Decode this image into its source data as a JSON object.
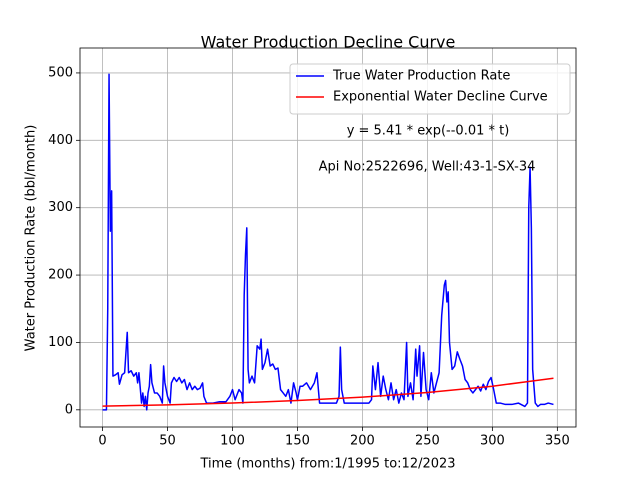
{
  "chart_data": {
    "type": "line",
    "title": "Water Production Decline Curve",
    "xlabel": "Time (months) from:1/1995 to:12/2023",
    "ylabel": "Water Production Rate (bbl/month)",
    "annotations": [
      "y = 5.41 * exp(--0.01 * t)",
      "Api No:2522696, Well:43-1-SX-34"
    ],
    "xlim": [
      -17.35,
      364.35
    ],
    "ylim": [
      -25.5,
      537
    ],
    "xticks": [
      0,
      50,
      100,
      150,
      200,
      250,
      300,
      350
    ],
    "yticks": [
      0,
      100,
      200,
      300,
      400,
      500
    ],
    "grid": true,
    "legend": "upper right",
    "series": [
      {
        "name": "True Water Production Rate",
        "color": "#0000ff",
        "x": [
          0,
          3,
          4,
          5,
          6,
          7,
          8,
          10,
          12,
          13,
          15,
          17,
          19,
          20,
          22,
          24,
          26,
          27,
          28,
          30,
          31,
          32,
          33,
          34,
          35,
          36,
          37,
          38,
          40,
          42,
          44,
          46,
          47,
          48,
          50,
          52,
          53,
          55,
          57,
          59,
          61,
          63,
          65,
          67,
          69,
          71,
          73,
          75,
          77,
          78,
          80,
          85,
          90,
          95,
          98,
          100,
          102,
          105,
          107,
          108,
          109,
          110,
          111,
          112,
          113,
          115,
          117,
          119,
          121,
          122,
          123,
          125,
          127,
          129,
          131,
          133,
          135,
          137,
          139,
          141,
          143,
          145,
          147,
          149,
          150,
          152,
          154,
          157,
          160,
          163,
          165,
          167,
          170,
          175,
          180,
          182,
          183,
          184,
          186,
          190,
          195,
          200,
          205,
          207,
          208,
          210,
          212,
          214,
          216,
          218,
          220,
          222,
          224,
          226,
          228,
          230,
          232,
          234,
          235,
          237,
          239,
          241,
          242,
          244,
          245,
          247,
          249,
          251,
          253,
          255,
          257,
          259,
          261,
          263,
          264,
          265,
          266,
          267,
          269,
          271,
          273,
          275,
          277,
          279,
          281,
          283,
          285,
          287,
          289,
          291,
          293,
          295,
          297,
          299,
          301,
          303,
          306,
          310,
          315,
          320,
          325,
          327,
          328,
          329,
          330,
          331,
          333,
          335,
          337,
          340,
          343,
          347
        ],
        "values": [
          0,
          0,
          150,
          498,
          265,
          325,
          50,
          52,
          55,
          38,
          52,
          55,
          115,
          55,
          58,
          50,
          55,
          40,
          55,
          10,
          25,
          5,
          20,
          0,
          25,
          35,
          67,
          40,
          25,
          25,
          20,
          10,
          65,
          40,
          20,
          10,
          40,
          48,
          42,
          48,
          40,
          45,
          30,
          40,
          30,
          35,
          30,
          32,
          40,
          20,
          10,
          10,
          12,
          12,
          20,
          30,
          15,
          30,
          25,
          10,
          170,
          230,
          270,
          60,
          40,
          50,
          40,
          95,
          90,
          105,
          60,
          70,
          90,
          65,
          68,
          60,
          62,
          30,
          25,
          20,
          30,
          10,
          40,
          25,
          15,
          35,
          35,
          40,
          30,
          40,
          55,
          10,
          10,
          10,
          10,
          20,
          93,
          30,
          10,
          10,
          10,
          10,
          10,
          15,
          65,
          30,
          70,
          20,
          50,
          30,
          15,
          40,
          15,
          30,
          10,
          25,
          15,
          100,
          20,
          40,
          15,
          90,
          50,
          95,
          20,
          85,
          30,
          15,
          55,
          25,
          40,
          55,
          140,
          185,
          192,
          160,
          175,
          100,
          60,
          65,
          86,
          75,
          65,
          45,
          40,
          30,
          25,
          30,
          35,
          28,
          38,
          30,
          42,
          48,
          30,
          10,
          10,
          8,
          8,
          10,
          5,
          10,
          300,
          360,
          270,
          60,
          10,
          5,
          8,
          8,
          10,
          8
        ]
      },
      {
        "name": "Exponential Water Decline Curve",
        "color": "#ff0000",
        "x": [
          0,
          50,
          100,
          150,
          200,
          250,
          300,
          347
        ],
        "values": [
          5.4,
          7.4,
          10.1,
          13.8,
          18.8,
          25.7,
          35.0,
          46.9
        ]
      }
    ]
  }
}
